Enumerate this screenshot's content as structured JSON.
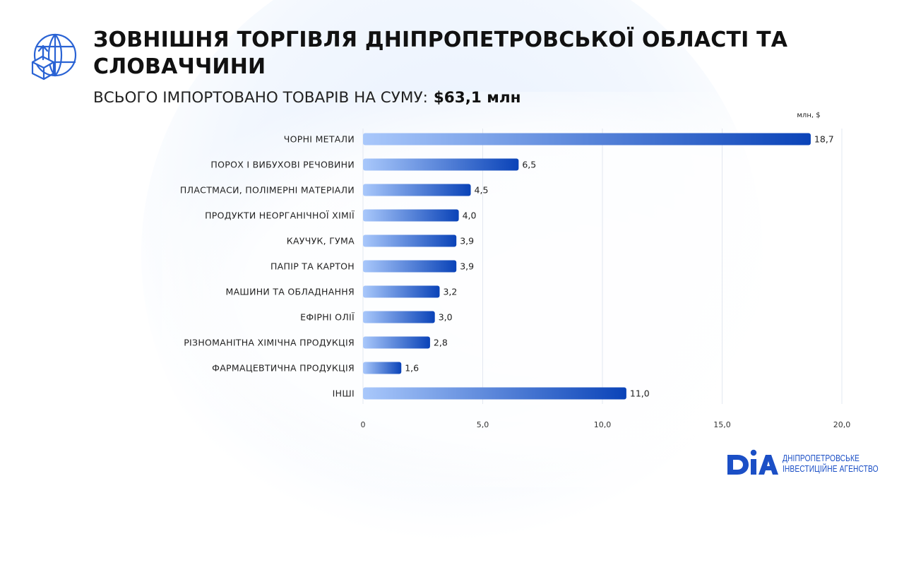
{
  "header": {
    "title": "ЗОВНІШНЯ ТОРГІВЛЯ ДНІПРОПЕТРОВСЬКОЇ ОБЛАСТІ ТА СЛОВАЧЧИНИ",
    "subtitle_label": "ВСЬОГО ІМПОРТОВАНО ТОВАРІВ НА СУМУ:",
    "subtitle_amount": "$63,1 млн"
  },
  "logo": {
    "mark": "DIA",
    "line1": "ДНІПРОПЕТРОВСЬКЕ",
    "line2": "ІНВЕСТИЦІЙНЕ АГЕНСТВО"
  },
  "colors": {
    "bar_start": "#a9c8fb",
    "bar_end": "#0a43b8",
    "brand": "#1b4fc6"
  },
  "chart_data": {
    "type": "bar",
    "orientation": "horizontal",
    "unit_label": "млн, $",
    "categories": [
      "ЧОРНІ МЕТАЛИ",
      "ПОРОХ І ВИБУХОВІ РЕЧОВИНИ",
      "ПЛАСТМАСИ, ПОЛІМЕРНІ МАТЕРІАЛИ",
      "ПРОДУКТИ НЕОРГАНІЧНОЇ ХІМІЇ",
      "КАУЧУК, ГУМА",
      "ПАПІР ТА КАРТОН",
      "МАШИНИ ТА ОБЛАДНАННЯ",
      "ЕФІРНІ ОЛІЇ",
      "РІЗНОМАНІТНА ХІМІЧНА ПРОДУКЦІЯ",
      "ФАРМАЦЕВТИЧНА ПРОДУКЦІЯ",
      "ІНШІ"
    ],
    "values": [
      18.7,
      6.5,
      4.5,
      4.0,
      3.9,
      3.9,
      3.2,
      3.0,
      2.8,
      1.6,
      11.0
    ],
    "value_labels": [
      "18,7",
      "6,5",
      "4,5",
      "4,0",
      "3,9",
      "3,9",
      "3,2",
      "3,0",
      "2,8",
      "1,6",
      "11,0"
    ],
    "xlim": [
      0,
      20
    ],
    "xticks": [
      0,
      5,
      10,
      15,
      20
    ],
    "xtick_labels": [
      "0",
      "5,0",
      "10,0",
      "15,0",
      "20,0"
    ],
    "grid": true
  }
}
